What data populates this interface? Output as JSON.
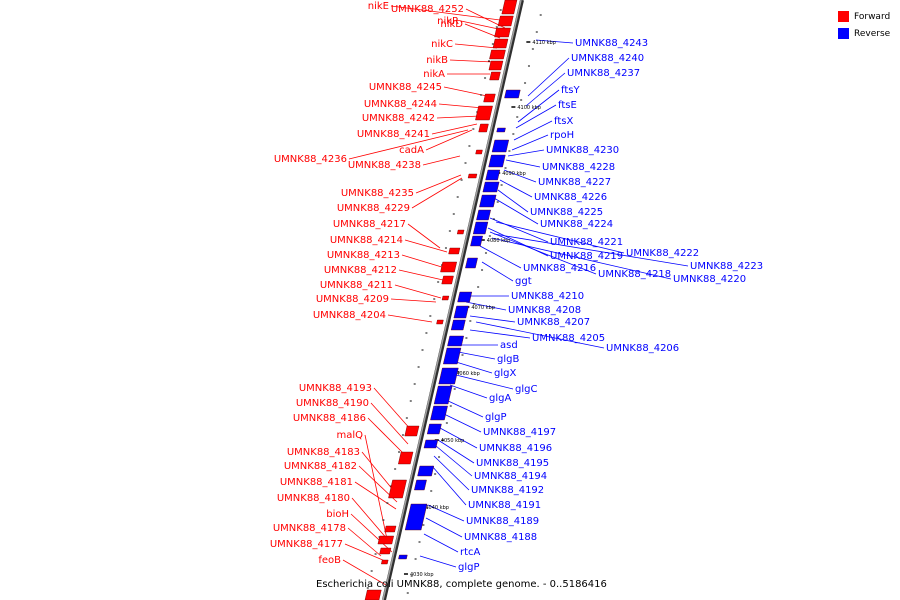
{
  "figure": {
    "caption": "Escherichia coli UMNK88, complete genome. - 0..5186416"
  },
  "legend": [
    {
      "label": "Forward",
      "color": "#ff0000"
    },
    {
      "label": "Reverse",
      "color": "#0000ff"
    }
  ],
  "colors": {
    "forward": "#ff0000",
    "reverse": "#0000ff",
    "backbone": "#808080",
    "edge": "#000000"
  },
  "ticks": [
    "4110 kbp",
    "4100 kbp",
    "4090 kbp",
    "4080 kbp",
    "4070 kbp",
    "4060 kbp",
    "4050 kbp",
    "4040 kbp",
    "4030 kbp"
  ],
  "forward_labels": [
    "nikE",
    "UMNK88_4252",
    "nikR",
    "nikD",
    "nikC",
    "nikB",
    "nikA",
    "UMNK88_4245",
    "UMNK88_4244",
    "UMNK88_4242",
    "UMNK88_4241",
    "cadA",
    "UMNK88_4236",
    "UMNK88_4238",
    "UMNK88_4235",
    "UMNK88_4229",
    "UMNK88_4217",
    "UMNK88_4214",
    "UMNK88_4213",
    "UMNK88_4212",
    "UMNK88_4211",
    "UMNK88_4209",
    "UMNK88_4204",
    "UMNK88_4193",
    "UMNK88_4190",
    "UMNK88_4186",
    "malQ",
    "UMNK88_4183",
    "UMNK88_4182",
    "UMNK88_4181",
    "UMNK88_4180",
    "bioH",
    "UMNK88_4178",
    "UMNK88_4177",
    "feoB"
  ],
  "reverse_labels": [
    "UMNK88_4243",
    "UMNK88_4240",
    "UMNK88_4237",
    "ftsY",
    "ftsE",
    "ftsX",
    "rpoH",
    "UMNK88_4230",
    "UMNK88_4228",
    "UMNK88_4227",
    "UMNK88_4226",
    "UMNK88_4225",
    "UMNK88_4224",
    "UMNK88_4221",
    "UMNK88_4222",
    "UMNK88_4219",
    "UMNK88_4223",
    "UMNK88_4216",
    "UMNK88_4218",
    "UMNK88_4220",
    "ggt",
    "UMNK88_4210",
    "UMNK88_4208",
    "UMNK88_4207",
    "UMNK88_4205",
    "UMNK88_4206",
    "asd",
    "glgB",
    "glgX",
    "glgC",
    "glgA",
    "glgP",
    "UMNK88_4197",
    "UMNK88_4196",
    "UMNK88_4195",
    "UMNK88_4194",
    "UMNK88_4192",
    "UMNK88_4191",
    "UMNK88_4189",
    "UMNK88_4188",
    "rtcA",
    "glgP"
  ]
}
